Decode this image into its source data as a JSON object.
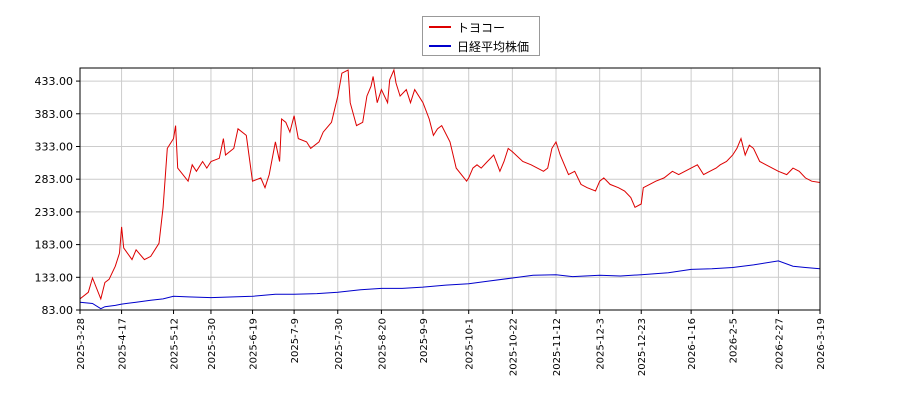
{
  "chart_data": {
    "type": "line",
    "xlabel": "",
    "ylabel": "",
    "ylim": [
      83,
      453
    ],
    "y_ticks": [
      "83.00",
      "133.00",
      "183.00",
      "233.00",
      "283.00",
      "333.00",
      "383.00",
      "433.00"
    ],
    "x_ticks": [
      "2025-3-28",
      "2025-4-17",
      "2025-5-12",
      "2025-5-30",
      "2025-6-19",
      "2025-7-9",
      "2025-7-30",
      "2025-8-20",
      "2025-9-9",
      "2025-10-1",
      "2025-10-22",
      "2025-11-12",
      "2025-12-3",
      "2025-12-23",
      "2026-1-16",
      "2026-2-5",
      "2026-2-27",
      "2026-3-19"
    ],
    "grid": true,
    "legend_position": "top-center",
    "series": [
      {
        "name": "トヨコー",
        "color": "#dd0000",
        "points": [
          [
            "2025-3-28",
            100
          ],
          [
            "2025-4-1",
            110
          ],
          [
            "2025-4-3",
            132
          ],
          [
            "2025-4-7",
            100
          ],
          [
            "2025-4-9",
            125
          ],
          [
            "2025-4-11",
            130
          ],
          [
            "2025-4-14",
            150
          ],
          [
            "2025-4-16",
            170
          ],
          [
            "2025-4-17",
            210
          ],
          [
            "2025-4-18",
            178
          ],
          [
            "2025-4-22",
            160
          ],
          [
            "2025-4-24",
            175
          ],
          [
            "2025-4-28",
            160
          ],
          [
            "2025-5-1",
            165
          ],
          [
            "2025-5-5",
            185
          ],
          [
            "2025-5-7",
            240
          ],
          [
            "2025-5-9",
            330
          ],
          [
            "2025-5-12",
            345
          ],
          [
            "2025-5-13",
            365
          ],
          [
            "2025-5-14",
            300
          ],
          [
            "2025-5-19",
            280
          ],
          [
            "2025-5-21",
            305
          ],
          [
            "2025-5-23",
            295
          ],
          [
            "2025-5-26",
            310
          ],
          [
            "2025-5-28",
            300
          ],
          [
            "2025-5-30",
            310
          ],
          [
            "2025-6-3",
            315
          ],
          [
            "2025-6-5",
            345
          ],
          [
            "2025-6-6",
            320
          ],
          [
            "2025-6-10",
            330
          ],
          [
            "2025-6-12",
            360
          ],
          [
            "2025-6-16",
            350
          ],
          [
            "2025-6-19",
            280
          ],
          [
            "2025-6-23",
            285
          ],
          [
            "2025-6-25",
            270
          ],
          [
            "2025-6-27",
            290
          ],
          [
            "2025-6-30",
            340
          ],
          [
            "2025-7-2",
            310
          ],
          [
            "2025-7-3",
            375
          ],
          [
            "2025-7-5",
            370
          ],
          [
            "2025-7-7",
            355
          ],
          [
            "2025-7-9",
            380
          ],
          [
            "2025-7-11",
            345
          ],
          [
            "2025-7-15",
            340
          ],
          [
            "2025-7-17",
            330
          ],
          [
            "2025-7-21",
            340
          ],
          [
            "2025-7-23",
            355
          ],
          [
            "2025-7-27",
            370
          ],
          [
            "2025-7-30",
            410
          ],
          [
            "2025-8-1",
            445
          ],
          [
            "2025-8-4",
            450
          ],
          [
            "2025-8-5",
            400
          ],
          [
            "2025-8-8",
            365
          ],
          [
            "2025-8-11",
            370
          ],
          [
            "2025-8-13",
            410
          ],
          [
            "2025-8-15",
            425
          ],
          [
            "2025-8-16",
            440
          ],
          [
            "2025-8-18",
            400
          ],
          [
            "2025-8-20",
            420
          ],
          [
            "2025-8-23",
            400
          ],
          [
            "2025-8-24",
            435
          ],
          [
            "2025-8-26",
            450
          ],
          [
            "2025-8-27",
            430
          ],
          [
            "2025-8-29",
            410
          ],
          [
            "2025-9-1",
            420
          ],
          [
            "2025-9-3",
            400
          ],
          [
            "2025-9-5",
            420
          ],
          [
            "2025-9-9",
            400
          ],
          [
            "2025-9-12",
            375
          ],
          [
            "2025-9-14",
            350
          ],
          [
            "2025-9-16",
            360
          ],
          [
            "2025-9-18",
            365
          ],
          [
            "2025-9-22",
            340
          ],
          [
            "2025-9-25",
            300
          ],
          [
            "2025-9-30",
            280
          ],
          [
            "2025-10-1",
            285
          ],
          [
            "2025-10-3",
            300
          ],
          [
            "2025-10-5",
            305
          ],
          [
            "2025-10-7",
            300
          ],
          [
            "2025-10-10",
            310
          ],
          [
            "2025-10-13",
            320
          ],
          [
            "2025-10-16",
            295
          ],
          [
            "2025-10-18",
            310
          ],
          [
            "2025-10-20",
            330
          ],
          [
            "2025-10-22",
            325
          ],
          [
            "2025-10-27",
            310
          ],
          [
            "2025-10-31",
            305
          ],
          [
            "2025-11-3",
            300
          ],
          [
            "2025-11-6",
            295
          ],
          [
            "2025-11-8",
            300
          ],
          [
            "2025-11-10",
            330
          ],
          [
            "2025-11-12",
            340
          ],
          [
            "2025-11-14",
            320
          ],
          [
            "2025-11-18",
            290
          ],
          [
            "2025-11-21",
            295
          ],
          [
            "2025-11-24",
            275
          ],
          [
            "2025-11-27",
            270
          ],
          [
            "2025-12-1",
            265
          ],
          [
            "2025-12-3",
            280
          ],
          [
            "2025-12-5",
            285
          ],
          [
            "2025-12-8",
            275
          ],
          [
            "2025-12-12",
            270
          ],
          [
            "2025-12-15",
            265
          ],
          [
            "2025-12-18",
            255
          ],
          [
            "2025-12-20",
            240
          ],
          [
            "2025-12-23",
            245
          ],
          [
            "2025-12-24",
            270
          ],
          [
            "2025-12-27",
            275
          ],
          [
            "2025-12-30",
            280
          ],
          [
            "2026-1-3",
            285
          ],
          [
            "2026-1-7",
            295
          ],
          [
            "2026-1-10",
            290
          ],
          [
            "2026-1-13",
            295
          ],
          [
            "2026-1-16",
            300
          ],
          [
            "2026-1-19",
            305
          ],
          [
            "2026-1-22",
            290
          ],
          [
            "2026-1-25",
            295
          ],
          [
            "2026-1-28",
            300
          ],
          [
            "2026-1-30",
            305
          ],
          [
            "2026-2-2",
            310
          ],
          [
            "2026-2-5",
            320
          ],
          [
            "2026-2-7",
            330
          ],
          [
            "2026-2-9",
            345
          ],
          [
            "2026-2-11",
            320
          ],
          [
            "2026-2-13",
            335
          ],
          [
            "2026-2-15",
            330
          ],
          [
            "2026-2-18",
            310
          ],
          [
            "2026-2-21",
            305
          ],
          [
            "2026-2-24",
            300
          ],
          [
            "2026-2-27",
            295
          ],
          [
            "2026-3-3",
            290
          ],
          [
            "2026-3-6",
            300
          ],
          [
            "2026-3-9",
            295
          ],
          [
            "2026-3-12",
            285
          ],
          [
            "2026-3-15",
            280
          ],
          [
            "2026-3-19",
            278
          ]
        ]
      },
      {
        "name": "日経平均株価",
        "color": "#0000cc",
        "points": [
          [
            "2025-3-28",
            95
          ],
          [
            "2025-4-3",
            93
          ],
          [
            "2025-4-7",
            85
          ],
          [
            "2025-4-9",
            88
          ],
          [
            "2025-4-14",
            90
          ],
          [
            "2025-4-17",
            92
          ],
          [
            "2025-4-24",
            95
          ],
          [
            "2025-5-1",
            98
          ],
          [
            "2025-5-7",
            100
          ],
          [
            "2025-5-12",
            104
          ],
          [
            "2025-5-19",
            103
          ],
          [
            "2025-5-30",
            102
          ],
          [
            "2025-6-10",
            103
          ],
          [
            "2025-6-19",
            104
          ],
          [
            "2025-6-30",
            107
          ],
          [
            "2025-7-9",
            107
          ],
          [
            "2025-7-20",
            108
          ],
          [
            "2025-7-30",
            110
          ],
          [
            "2025-8-10",
            114
          ],
          [
            "2025-8-20",
            116
          ],
          [
            "2025-8-30",
            116
          ],
          [
            "2025-9-9",
            118
          ],
          [
            "2025-9-20",
            121
          ],
          [
            "2025-10-1",
            123
          ],
          [
            "2025-10-10",
            127
          ],
          [
            "2025-10-22",
            132
          ],
          [
            "2025-11-1",
            136
          ],
          [
            "2025-11-12",
            137
          ],
          [
            "2025-11-20",
            134
          ],
          [
            "2025-12-3",
            136
          ],
          [
            "2025-12-13",
            135
          ],
          [
            "2025-12-23",
            137
          ],
          [
            "2026-1-5",
            140
          ],
          [
            "2026-1-16",
            145
          ],
          [
            "2026-1-26",
            146
          ],
          [
            "2026-2-5",
            148
          ],
          [
            "2026-2-15",
            152
          ],
          [
            "2026-2-27",
            158
          ],
          [
            "2026-3-6",
            150
          ],
          [
            "2026-3-12",
            148
          ],
          [
            "2026-3-19",
            146
          ]
        ]
      }
    ]
  }
}
